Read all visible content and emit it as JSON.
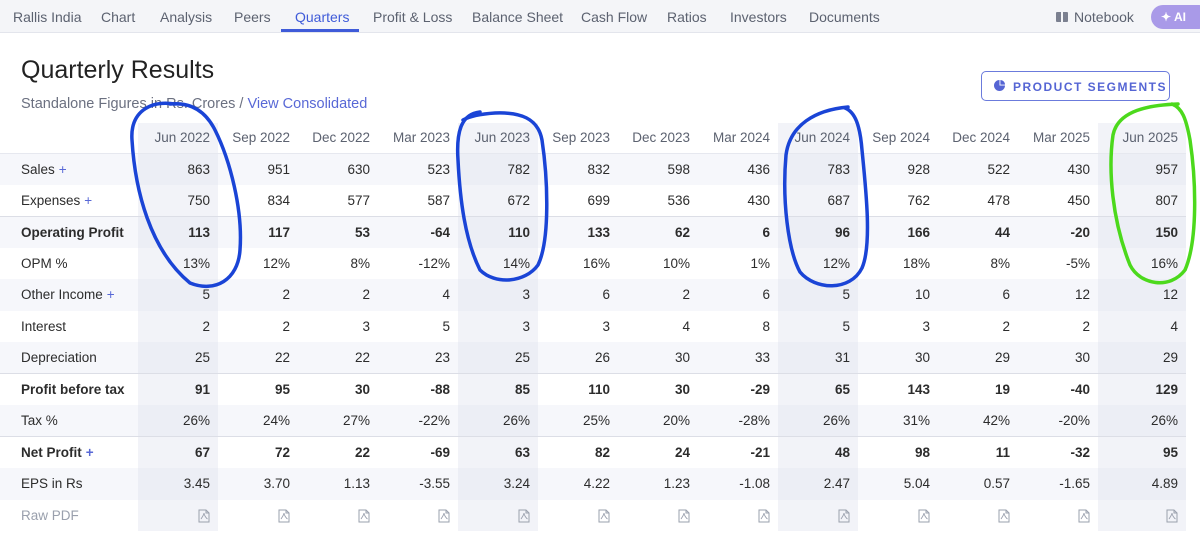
{
  "nav": {
    "items": [
      {
        "label": "Rallis India"
      },
      {
        "label": "Chart"
      },
      {
        "label": "Analysis"
      },
      {
        "label": "Peers"
      },
      {
        "label": "Quarters",
        "active": true
      },
      {
        "label": "Profit & Loss"
      },
      {
        "label": "Balance Sheet"
      },
      {
        "label": "Cash Flow"
      },
      {
        "label": "Ratios"
      },
      {
        "label": "Investors"
      },
      {
        "label": "Documents"
      }
    ],
    "notebook_label": "Notebook",
    "ai_label": "AI",
    "accent_color": "#3f5bd9"
  },
  "section": {
    "title": "Quarterly Results",
    "subtitle_prefix": "Standalone Figures in Rs. Crores /",
    "subtitle_link": "View Consolidated",
    "segments_button": "PRODUCT SEGMENTS"
  },
  "table": {
    "columns": [
      "Jun 2022",
      "Sep 2022",
      "Dec 2022",
      "Mar 2023",
      "Jun 2023",
      "Sep 2023",
      "Dec 2023",
      "Mar 2024",
      "Jun 2024",
      "Sep 2024",
      "Dec 2024",
      "Mar 2025",
      "Jun 2025"
    ],
    "rows": [
      {
        "label": "Sales",
        "plus": "+",
        "values": [
          "863",
          "951",
          "630",
          "523",
          "782",
          "832",
          "598",
          "436",
          "783",
          "928",
          "522",
          "430",
          "957"
        ]
      },
      {
        "label": "Expenses",
        "plus": "+",
        "values": [
          "750",
          "834",
          "577",
          "587",
          "672",
          "699",
          "536",
          "430",
          "687",
          "762",
          "478",
          "450",
          "807"
        ]
      },
      {
        "label": "Operating Profit",
        "bold": true,
        "sep": true,
        "values": [
          "113",
          "117",
          "53",
          "-64",
          "110",
          "133",
          "62",
          "6",
          "96",
          "166",
          "44",
          "-20",
          "150"
        ]
      },
      {
        "label": "OPM %",
        "values": [
          "13%",
          "12%",
          "8%",
          "-12%",
          "14%",
          "16%",
          "10%",
          "1%",
          "12%",
          "18%",
          "8%",
          "-5%",
          "16%"
        ]
      },
      {
        "label": "Other Income",
        "plus": "+",
        "values": [
          "5",
          "2",
          "2",
          "4",
          "3",
          "6",
          "2",
          "6",
          "5",
          "10",
          "6",
          "12",
          "12"
        ]
      },
      {
        "label": "Interest",
        "values": [
          "2",
          "2",
          "3",
          "5",
          "3",
          "3",
          "4",
          "8",
          "5",
          "3",
          "2",
          "2",
          "4"
        ]
      },
      {
        "label": "Depreciation",
        "values": [
          "25",
          "22",
          "22",
          "23",
          "25",
          "26",
          "30",
          "33",
          "31",
          "30",
          "29",
          "30",
          "29"
        ]
      },
      {
        "label": "Profit before tax",
        "bold": true,
        "sep": true,
        "values": [
          "91",
          "95",
          "30",
          "-88",
          "85",
          "110",
          "30",
          "-29",
          "65",
          "143",
          "19",
          "-40",
          "129"
        ]
      },
      {
        "label": "Tax %",
        "values": [
          "26%",
          "24%",
          "27%",
          "-22%",
          "26%",
          "25%",
          "20%",
          "-28%",
          "26%",
          "31%",
          "42%",
          "-20%",
          "26%"
        ]
      },
      {
        "label": "Net Profit",
        "plus": "+",
        "bold": true,
        "sep": true,
        "values": [
          "67",
          "72",
          "22",
          "-69",
          "63",
          "82",
          "24",
          "-21",
          "48",
          "98",
          "11",
          "-32",
          "95"
        ]
      },
      {
        "label": "EPS in Rs",
        "values": [
          "3.45",
          "3.70",
          "1.13",
          "-3.55",
          "3.24",
          "4.22",
          "1.23",
          "-1.08",
          "2.47",
          "5.04",
          "0.57",
          "-1.65",
          "4.89"
        ]
      },
      {
        "label": "Raw PDF",
        "raw": true,
        "icon": "pdf-file-icon"
      }
    ]
  },
  "annotations": {
    "blue_color": "#1a44d6",
    "green_color": "#4cd91c"
  }
}
